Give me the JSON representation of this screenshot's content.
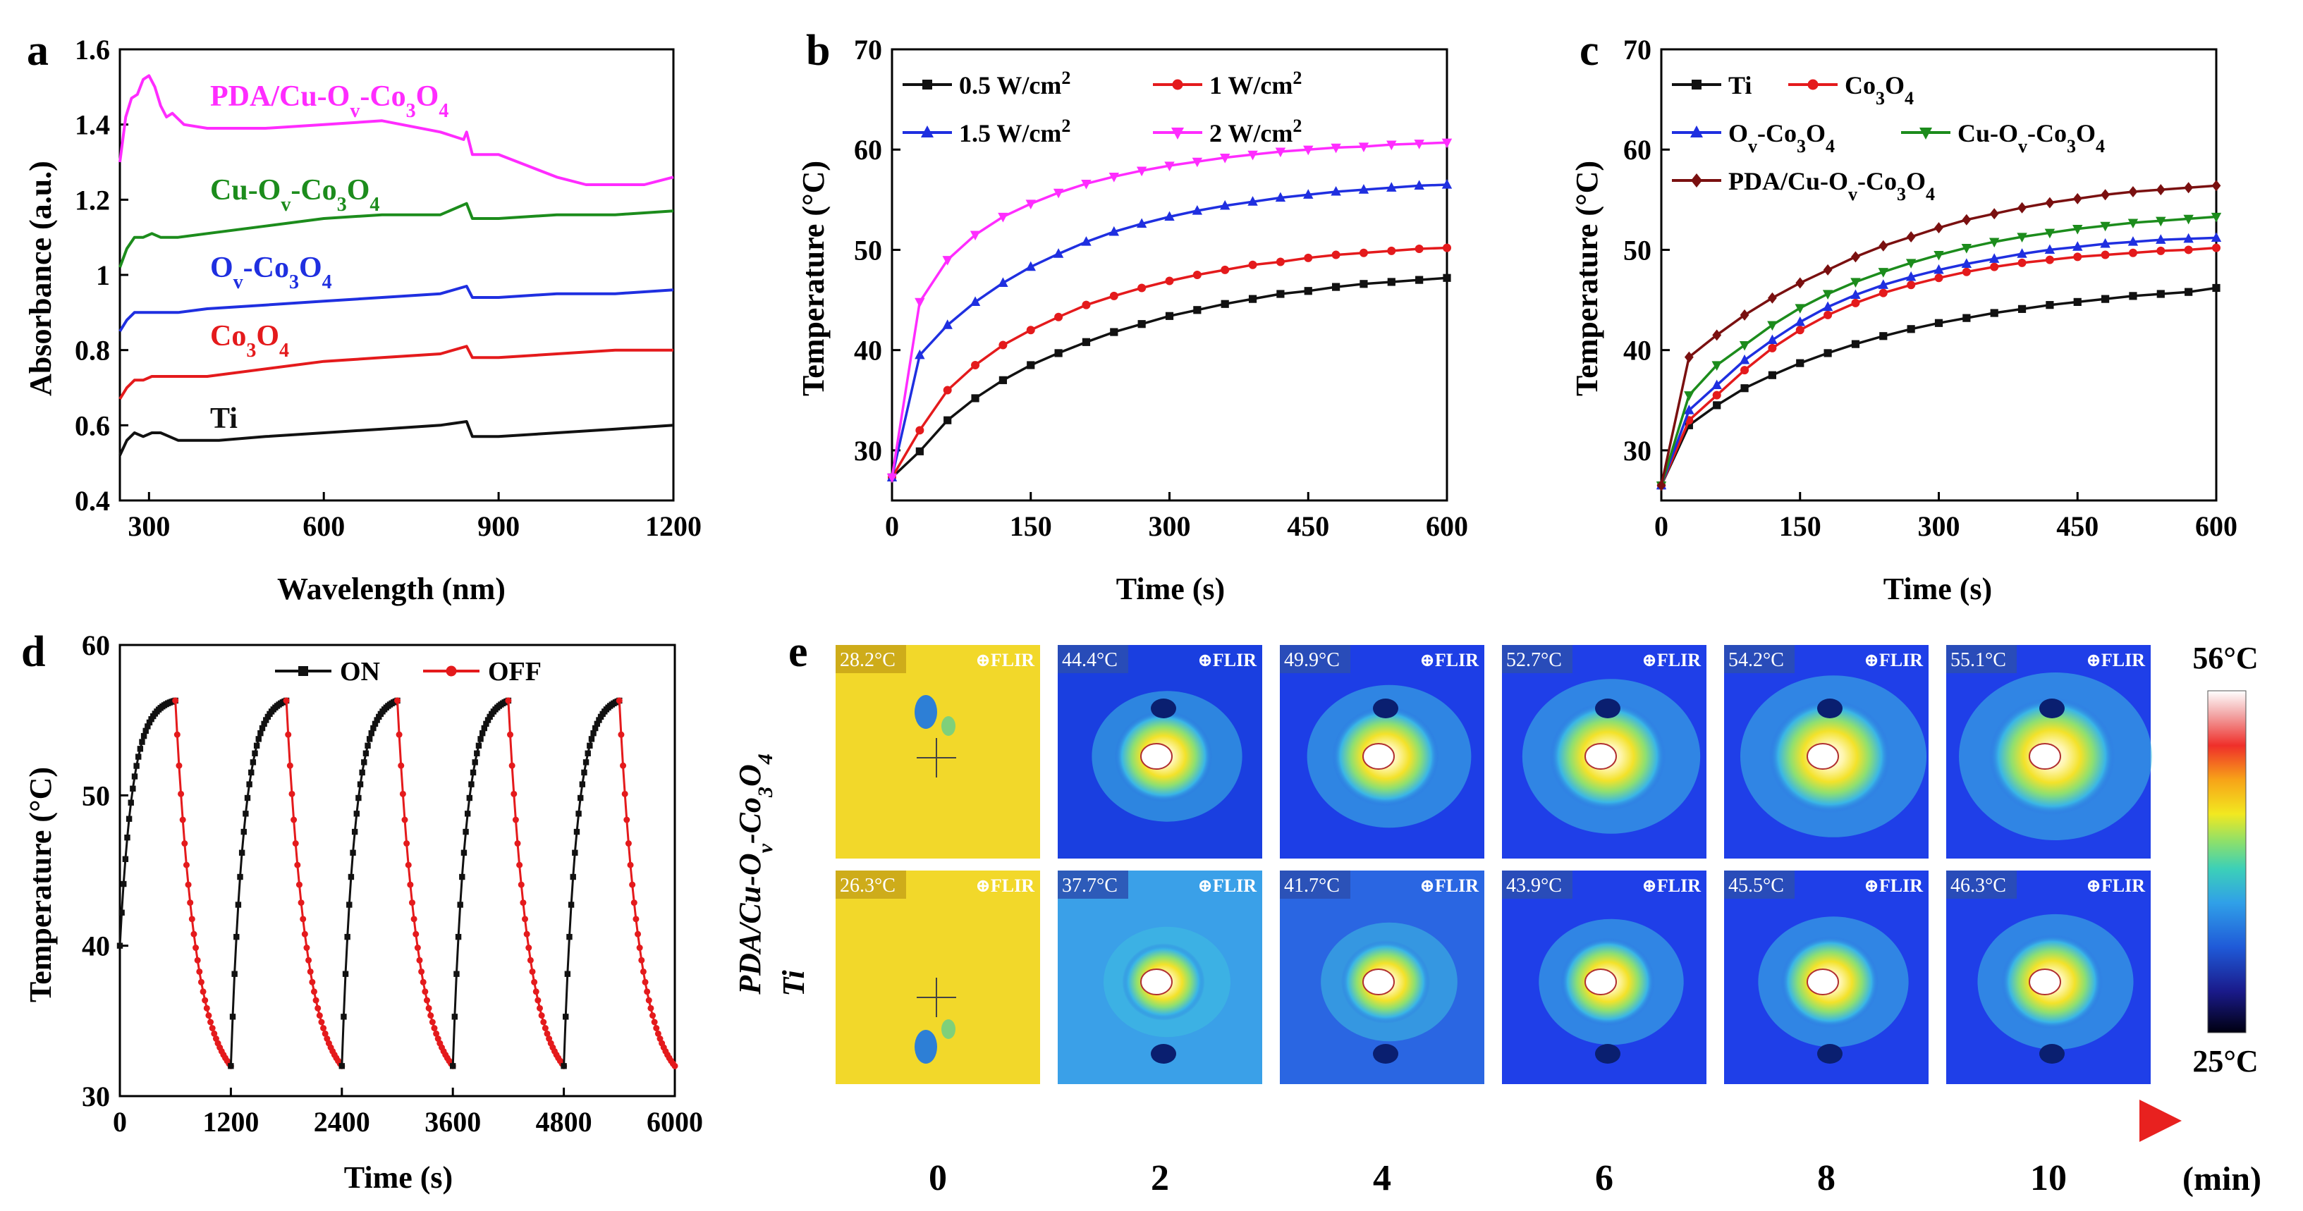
{
  "panels": {
    "a": {
      "letter": "a",
      "chart_data": {
        "type": "line",
        "xlabel": "Wavelength (nm)",
        "ylabel": "Absorbance (a.u.)",
        "xlim": [
          250,
          1200
        ],
        "ylim": [
          0.4,
          1.6
        ],
        "xticks": [
          300,
          600,
          900,
          1200
        ],
        "yticks": [
          0.4,
          0.6,
          0.8,
          1.0,
          1.2,
          1.4,
          1.6
        ],
        "series": [
          {
            "name": "Ti",
            "color": "#111111",
            "x": [
              250,
              262,
              275,
              290,
              305,
              320,
              335,
              350,
              380,
              420,
              500,
              600,
              700,
              800,
              845,
              855,
              900,
              1000,
              1100,
              1200
            ],
            "y": [
              0.52,
              0.56,
              0.58,
              0.57,
              0.58,
              0.58,
              0.57,
              0.56,
              0.56,
              0.56,
              0.57,
              0.58,
              0.59,
              0.6,
              0.61,
              0.57,
              0.57,
              0.58,
              0.59,
              0.6
            ]
          },
          {
            "name": "Co3O4",
            "color": "#e41a1c",
            "x": [
              250,
              262,
              275,
              290,
              305,
              320,
              350,
              400,
              500,
              600,
              700,
              800,
              845,
              855,
              900,
              1000,
              1100,
              1200
            ],
            "y": [
              0.67,
              0.7,
              0.72,
              0.72,
              0.73,
              0.73,
              0.73,
              0.73,
              0.75,
              0.77,
              0.78,
              0.79,
              0.81,
              0.78,
              0.78,
              0.79,
              0.8,
              0.8
            ]
          },
          {
            "name": "Ov-Co3O4",
            "color": "#1f2fe0",
            "x": [
              250,
              262,
              275,
              290,
              305,
              320,
              350,
              400,
              500,
              600,
              700,
              800,
              845,
              855,
              900,
              1000,
              1100,
              1200
            ],
            "y": [
              0.85,
              0.88,
              0.9,
              0.9,
              0.9,
              0.9,
              0.9,
              0.91,
              0.92,
              0.93,
              0.94,
              0.95,
              0.97,
              0.94,
              0.94,
              0.95,
              0.95,
              0.96
            ]
          },
          {
            "name": "Cu-Ov-Co3O4",
            "color": "#1c8c1c",
            "x": [
              250,
              262,
              275,
              290,
              305,
              320,
              350,
              400,
              500,
              600,
              700,
              800,
              845,
              855,
              900,
              1000,
              1100,
              1200
            ],
            "y": [
              1.02,
              1.07,
              1.1,
              1.1,
              1.11,
              1.1,
              1.1,
              1.11,
              1.13,
              1.15,
              1.16,
              1.16,
              1.19,
              1.15,
              1.15,
              1.16,
              1.16,
              1.17
            ]
          },
          {
            "name": "PDA/Cu-Ov-Co3O4",
            "color": "#ff2cff",
            "x": [
              250,
              260,
              270,
              280,
              290,
              300,
              310,
              320,
              330,
              340,
              360,
              400,
              500,
              600,
              700,
              800,
              840,
              845,
              855,
              900,
              950,
              1000,
              1050,
              1100,
              1150,
              1200
            ],
            "y": [
              1.3,
              1.42,
              1.47,
              1.48,
              1.52,
              1.53,
              1.5,
              1.45,
              1.42,
              1.43,
              1.4,
              1.39,
              1.39,
              1.4,
              1.41,
              1.38,
              1.36,
              1.38,
              1.32,
              1.32,
              1.29,
              1.26,
              1.24,
              1.24,
              1.24,
              1.26
            ]
          }
        ],
        "annotations": [
          {
            "text": "PDA/Cu-Ov-Co3O4",
            "color": "#ff2cff"
          },
          {
            "text": "Cu-Ov-Co3O4",
            "color": "#1c8c1c"
          },
          {
            "text": "Ov-Co3O4",
            "color": "#1f2fe0"
          },
          {
            "text": "Co3O4",
            "color": "#e41a1c"
          },
          {
            "text": "Ti",
            "color": "#111111"
          }
        ]
      }
    },
    "b": {
      "letter": "b",
      "chart_data": {
        "type": "line",
        "xlabel": "Time (s)",
        "ylabel": "Temperature (°C)",
        "xlim": [
          0,
          600
        ],
        "ylim": [
          25,
          70
        ],
        "xticks": [
          0,
          150,
          300,
          450,
          600
        ],
        "yticks": [
          30,
          40,
          50,
          60,
          70
        ],
        "series": [
          {
            "name": "0.5 W/cm2",
            "color": "#111111",
            "marker": "square",
            "x0": 0,
            "dx": 30,
            "values": [
              27.3,
              29.9,
              33.0,
              35.2,
              37.0,
              38.5,
              39.7,
              40.8,
              41.8,
              42.6,
              43.4,
              44.0,
              44.6,
              45.1,
              45.6,
              45.9,
              46.3,
              46.6,
              46.8,
              47.0,
              47.2
            ]
          },
          {
            "name": "1 W/cm2",
            "color": "#e41a1c",
            "marker": "circle",
            "x0": 0,
            "dx": 30,
            "values": [
              27.3,
              32.0,
              36.0,
              38.5,
              40.5,
              42.0,
              43.3,
              44.5,
              45.4,
              46.2,
              46.9,
              47.5,
              48.0,
              48.5,
              48.8,
              49.2,
              49.5,
              49.7,
              49.9,
              50.1,
              50.2
            ]
          },
          {
            "name": "1.5 W/cm2",
            "color": "#1f2fe0",
            "marker": "triangle",
            "x0": 0,
            "dx": 30,
            "values": [
              27.3,
              39.5,
              42.5,
              44.8,
              46.7,
              48.3,
              49.6,
              50.8,
              51.8,
              52.6,
              53.3,
              53.9,
              54.4,
              54.8,
              55.2,
              55.5,
              55.8,
              56.0,
              56.2,
              56.4,
              56.5
            ]
          },
          {
            "name": "2 W/cm2",
            "color": "#ff2cff",
            "marker": "triangle-down",
            "x0": 0,
            "dx": 30,
            "values": [
              27.3,
              44.8,
              49.0,
              51.5,
              53.3,
              54.6,
              55.7,
              56.6,
              57.3,
              57.9,
              58.4,
              58.8,
              59.2,
              59.5,
              59.8,
              60.0,
              60.2,
              60.3,
              60.5,
              60.6,
              60.7
            ]
          }
        ],
        "legend": {
          "position": "top-left",
          "columns": 2
        }
      }
    },
    "c": {
      "letter": "c",
      "chart_data": {
        "type": "line",
        "xlabel": "Time (s)",
        "ylabel": "Temperature (°C)",
        "xlim": [
          0,
          600
        ],
        "ylim": [
          25,
          70
        ],
        "xticks": [
          0,
          150,
          300,
          450,
          600
        ],
        "yticks": [
          30,
          40,
          50,
          60,
          70
        ],
        "series": [
          {
            "name": "Ti",
            "color": "#111111",
            "marker": "square",
            "x0": 0,
            "dx": 30,
            "values": [
              26.5,
              32.5,
              34.5,
              36.2,
              37.5,
              38.7,
              39.7,
              40.6,
              41.4,
              42.1,
              42.7,
              43.2,
              43.7,
              44.1,
              44.5,
              44.8,
              45.1,
              45.4,
              45.6,
              45.8,
              46.2
            ]
          },
          {
            "name": "Co3O4",
            "color": "#e41a1c",
            "marker": "circle",
            "x0": 0,
            "dx": 30,
            "values": [
              26.5,
              33.0,
              35.5,
              38.0,
              40.2,
              42.0,
              43.5,
              44.7,
              45.7,
              46.5,
              47.2,
              47.8,
              48.3,
              48.7,
              49.0,
              49.3,
              49.5,
              49.7,
              49.9,
              50.0,
              50.2
            ]
          },
          {
            "name": "Ov-Co3O4",
            "color": "#1f2fe0",
            "marker": "triangle",
            "x0": 0,
            "dx": 30,
            "values": [
              26.5,
              34.0,
              36.5,
              39.0,
              41.0,
              42.8,
              44.3,
              45.5,
              46.5,
              47.3,
              48.0,
              48.6,
              49.1,
              49.6,
              50.0,
              50.3,
              50.6,
              50.8,
              51.0,
              51.1,
              51.2
            ]
          },
          {
            "name": "Cu-Ov-Co3O4",
            "color": "#1c8c1c",
            "marker": "triangle-down",
            "x0": 0,
            "dx": 30,
            "values": [
              26.5,
              35.5,
              38.5,
              40.5,
              42.5,
              44.2,
              45.6,
              46.8,
              47.8,
              48.7,
              49.5,
              50.2,
              50.8,
              51.3,
              51.7,
              52.1,
              52.4,
              52.7,
              52.9,
              53.1,
              53.3
            ]
          },
          {
            "name": "PDA/Cu-Ov-Co3O4",
            "color": "#7a1010",
            "marker": "diamond",
            "x0": 0,
            "dx": 30,
            "values": [
              26.5,
              39.3,
              41.5,
              43.5,
              45.2,
              46.7,
              48.0,
              49.3,
              50.4,
              51.3,
              52.2,
              53.0,
              53.6,
              54.2,
              54.7,
              55.1,
              55.5,
              55.8,
              56.0,
              56.2,
              56.4
            ]
          }
        ],
        "legend": {
          "position": "top-left",
          "columns": 2
        }
      }
    },
    "d": {
      "letter": "d",
      "chart_data": {
        "type": "line",
        "xlabel": "Time (s)",
        "ylabel": "Temperature (°C)",
        "xlim": [
          0,
          6000
        ],
        "ylim": [
          30,
          60
        ],
        "xticks": [
          0,
          1200,
          2400,
          3600,
          4800,
          6000
        ],
        "yticks": [
          30,
          40,
          50,
          60
        ],
        "cycles": 5,
        "cycle_period_s": 1200,
        "on_duration_s": 600,
        "on_start_temp": 40.0,
        "peak_temp": 56.3,
        "off_end_temp": 32.0,
        "series": [
          {
            "name": "ON",
            "color": "#111111",
            "marker": "square"
          },
          {
            "name": "OFF",
            "color": "#e41a1c",
            "marker": "circle"
          }
        ],
        "legend": {
          "position": "top-center",
          "columns": 2
        }
      }
    },
    "e": {
      "letter": "e",
      "row_labels": [
        "PDA/Cu-Ov-Co3O4",
        "Ti"
      ],
      "times": [
        "0",
        "2",
        "4",
        "6",
        "8",
        "10"
      ],
      "time_unit": "(min)",
      "brand": "FLIR",
      "temps_row1": [
        "28.2°C",
        "44.4°C",
        "49.9°C",
        "52.7°C",
        "54.2°C",
        "55.1°C"
      ],
      "temps_row2": [
        "26.3°C",
        "37.7°C",
        "41.7°C",
        "43.9°C",
        "45.5°C",
        "46.3°C"
      ],
      "scale_max": "56°C",
      "scale_min": "25°C"
    }
  }
}
